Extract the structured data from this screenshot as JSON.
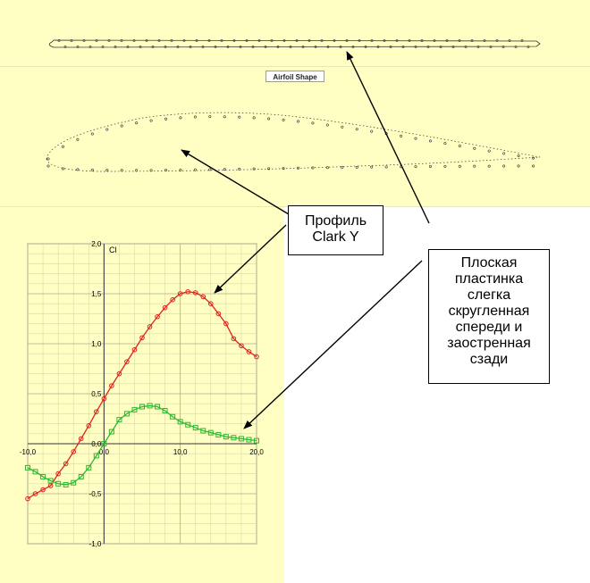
{
  "panels": {
    "shape_title": "Airfoil Shape"
  },
  "callouts": {
    "clark_y": [
      "Профиль",
      "Clark Y"
    ],
    "flat_plate": [
      "Плоская",
      "пластинка",
      "слегка",
      "скругленная",
      "спереди и",
      "заостренная",
      "сзади"
    ]
  },
  "chart_data": {
    "type": "line",
    "title": "",
    "xlabel": "",
    "ylabel": "Cl",
    "xlim": [
      -10,
      20
    ],
    "ylim": [
      -1,
      2
    ],
    "x_ticks": [
      "-10,0",
      "0,0",
      "10,0",
      "20,0"
    ],
    "y_ticks": [
      "2,0",
      "1,5",
      "1,0",
      "0,5",
      "0,0",
      "-0,5",
      "-1,0"
    ],
    "grid": true,
    "series": [
      {
        "color": "#e0241b",
        "marker": "circle",
        "x": [
          -10,
          -9,
          -8,
          -7,
          -6,
          -5,
          -4,
          -3,
          -2,
          -1,
          0,
          1,
          2,
          3,
          4,
          5,
          6,
          7,
          8,
          9,
          10,
          11,
          12,
          13,
          14,
          15,
          16,
          17,
          18,
          19,
          20
        ],
        "y": [
          -0.55,
          -0.5,
          -0.46,
          -0.42,
          -0.3,
          -0.2,
          -0.08,
          0.05,
          0.18,
          0.32,
          0.45,
          0.58,
          0.7,
          0.82,
          0.94,
          1.06,
          1.17,
          1.27,
          1.36,
          1.44,
          1.5,
          1.52,
          1.51,
          1.47,
          1.4,
          1.3,
          1.2,
          1.05,
          0.98,
          0.92,
          0.87
        ]
      },
      {
        "color": "#2eb82e",
        "marker": "square",
        "x": [
          -10,
          -9,
          -8,
          -7,
          -6,
          -5,
          -4,
          -3,
          -2,
          -1,
          0,
          1,
          2,
          3,
          4,
          5,
          6,
          7,
          8,
          9,
          10,
          11,
          12,
          13,
          14,
          15,
          16,
          17,
          18,
          19,
          20
        ],
        "y": [
          -0.24,
          -0.28,
          -0.33,
          -0.37,
          -0.4,
          -0.41,
          -0.39,
          -0.33,
          -0.24,
          -0.12,
          0.0,
          0.12,
          0.24,
          0.3,
          0.34,
          0.37,
          0.38,
          0.37,
          0.33,
          0.27,
          0.22,
          0.19,
          0.16,
          0.13,
          0.11,
          0.09,
          0.07,
          0.06,
          0.05,
          0.04,
          0.03
        ]
      }
    ]
  }
}
